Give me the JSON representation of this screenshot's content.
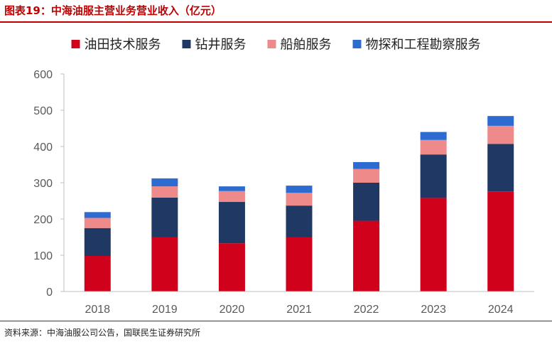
{
  "figure": {
    "title": "图表19：中海油服主营业务营业收入（亿元）",
    "source": "资料来源：中海油服公司公告，国联民生证券研究所"
  },
  "colors": {
    "accent": "#c00000",
    "axis": "#bfbfbf",
    "tick_text": "#595959"
  },
  "chart_data": {
    "type": "bar",
    "stacked": true,
    "title": "",
    "xlabel": "",
    "ylabel": "",
    "categories": [
      "2018",
      "2019",
      "2020",
      "2021",
      "2022",
      "2023",
      "2024"
    ],
    "ylim": [
      0,
      600
    ],
    "yticks": [
      0,
      100,
      200,
      300,
      400,
      500,
      600
    ],
    "grid": false,
    "legend": "top",
    "series": [
      {
        "name": "油田技术服务",
        "color": "#d0021b",
        "values": [
          98,
          150,
          133,
          150,
          195,
          258,
          276
        ]
      },
      {
        "name": "钻井服务",
        "color": "#1f3864",
        "values": [
          77,
          109,
          114,
          87,
          105,
          120,
          131
        ]
      },
      {
        "name": "船舶服务",
        "color": "#ef8a8a",
        "values": [
          28,
          31,
          30,
          35,
          38,
          40,
          50
        ]
      },
      {
        "name": "物探和工程勘察服务",
        "color": "#2e6bd0",
        "values": [
          16,
          22,
          13,
          20,
          19,
          22,
          27
        ]
      }
    ]
  }
}
